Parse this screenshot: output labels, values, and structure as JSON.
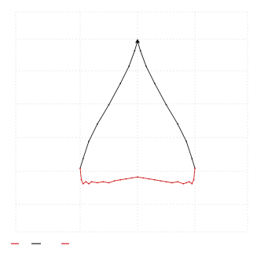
{
  "chart_data": {
    "type": "line",
    "title": "",
    "xlabel": "",
    "ylabel": "",
    "grid": true,
    "legend_placement": "bottom-left",
    "colors": {
      "series_black": "#1a1a1a",
      "series_red": "#d02020",
      "grid": "#cccccc",
      "text": "#777777"
    },
    "series": [
      {
        "key": "black",
        "color": "#1a1a1a",
        "x": [
          -1,
          -0.95,
          -0.85,
          -0.7,
          -0.5,
          -0.3,
          -0.15,
          -0.05,
          0,
          0.05,
          0.15,
          0.3,
          0.5,
          0.7,
          0.85,
          0.95,
          1
        ],
        "y": [
          0.33,
          0.38,
          0.47,
          0.56,
          0.66,
          0.77,
          0.86,
          0.94,
          0.99,
          0.94,
          0.86,
          0.77,
          0.66,
          0.56,
          0.47,
          0.38,
          0.33
        ]
      },
      {
        "key": "red",
        "color": "#d02020",
        "x": [
          -1,
          -0.98,
          -0.95,
          -0.9,
          -0.85,
          -0.8,
          -0.7,
          -0.6,
          -0.5,
          -0.4,
          -0.3,
          -0.2,
          -0.1,
          0,
          0.1,
          0.2,
          0.3,
          0.4,
          0.5,
          0.6,
          0.7,
          0.8,
          0.85,
          0.9,
          0.95,
          0.98,
          1
        ],
        "y": [
          0.33,
          0.27,
          0.25,
          0.26,
          0.25,
          0.26,
          0.255,
          0.26,
          0.255,
          0.265,
          0.27,
          0.275,
          0.28,
          0.285,
          0.28,
          0.275,
          0.27,
          0.265,
          0.26,
          0.255,
          0.26,
          0.25,
          0.255,
          0.26,
          0.25,
          0.27,
          0.33
        ]
      }
    ]
  }
}
